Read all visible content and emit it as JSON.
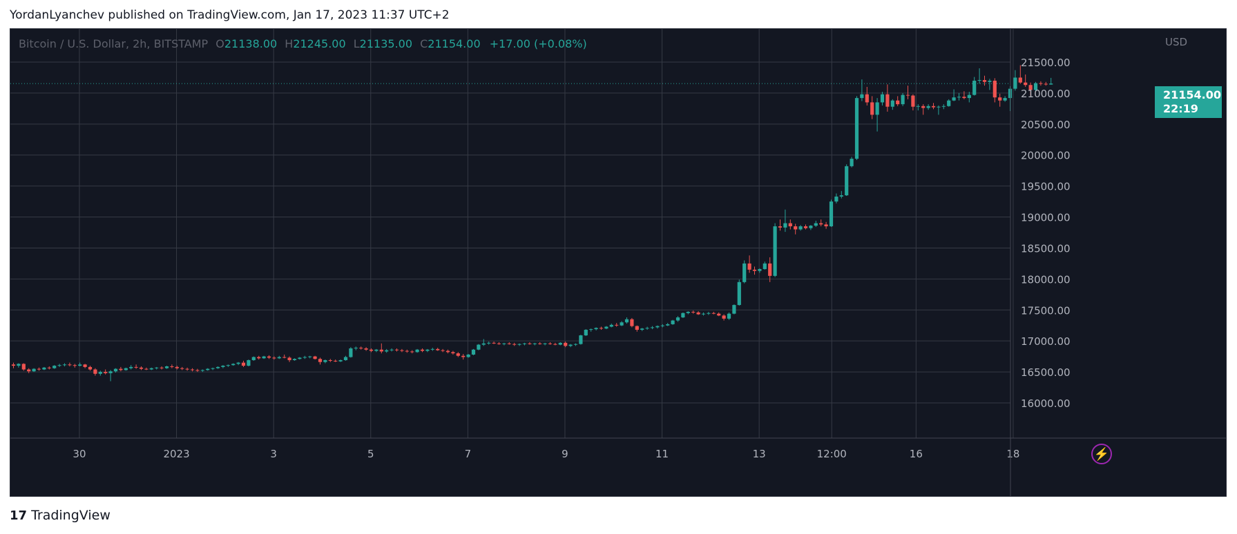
{
  "header": {
    "publisher_line": "YordanLyanchev published on TradingView.com, Jan 17, 2023 11:37 UTC+2"
  },
  "legend": {
    "symbol": "Bitcoin / U.S. Dollar, 2h, BITSTAMP",
    "open_key": "O",
    "open": "21138.00",
    "high_key": "H",
    "high": "21245.00",
    "low_key": "L",
    "low": "21135.00",
    "close_key": "C",
    "close": "21154.00",
    "change": "+17.00 (+0.08%)"
  },
  "price_axis": {
    "currency": "USD"
  },
  "last_price": {
    "value": "21154.00",
    "countdown": "22:19"
  },
  "footer": {
    "logo_text": "TradingView"
  },
  "colors": {
    "background": "#131722",
    "grid": "#363a45",
    "up": "#26a69a",
    "down": "#ef5350",
    "text": "#b2b5be"
  },
  "icons": {
    "alert": "lightning-bolt-icon",
    "logo": "tradingview-logo-icon"
  },
  "chart_data": {
    "type": "candlestick",
    "title": "Bitcoin / U.S. Dollar, 2h, BITSTAMP",
    "ylabel": "USD",
    "ylim": [
      15500,
      22050
    ],
    "y_ticks": [
      16000,
      16500,
      17000,
      17500,
      18000,
      18500,
      19000,
      19500,
      20000,
      20500,
      21000,
      21500
    ],
    "x_ticks": [
      {
        "label": "30",
        "bar": 12.9
      },
      {
        "label": "2023",
        "bar": 31.9
      },
      {
        "label": "3",
        "bar": 50.9
      },
      {
        "label": "5",
        "bar": 69.9
      },
      {
        "label": "7",
        "bar": 88.9
      },
      {
        "label": "9",
        "bar": 107.9
      },
      {
        "label": "11",
        "bar": 126.9
      },
      {
        "label": "13",
        "bar": 145.9
      },
      {
        "label": "12:00",
        "bar": 160.1
      },
      {
        "label": "16",
        "bar": 176.6
      },
      {
        "label": "18",
        "bar": 195.6
      }
    ],
    "last_price": 21154,
    "ohlc": [
      [
        16620,
        16650,
        16560,
        16600
      ],
      [
        16600,
        16640,
        16570,
        16630
      ],
      [
        16630,
        16640,
        16520,
        16540
      ],
      [
        16540,
        16560,
        16480,
        16510
      ],
      [
        16510,
        16560,
        16500,
        16550
      ],
      [
        16550,
        16570,
        16520,
        16540
      ],
      [
        16540,
        16580,
        16530,
        16570
      ],
      [
        16570,
        16590,
        16540,
        16560
      ],
      [
        16560,
        16610,
        16550,
        16600
      ],
      [
        16600,
        16630,
        16580,
        16610
      ],
      [
        16610,
        16640,
        16590,
        16620
      ],
      [
        16620,
        16650,
        16590,
        16610
      ],
      [
        16610,
        16630,
        16570,
        16600
      ],
      [
        16600,
        16650,
        16590,
        16620
      ],
      [
        16620,
        16630,
        16560,
        16580
      ],
      [
        16580,
        16600,
        16520,
        16540
      ],
      [
        16540,
        16560,
        16440,
        16470
      ],
      [
        16470,
        16520,
        16440,
        16500
      ],
      [
        16500,
        16540,
        16460,
        16480
      ],
      [
        16480,
        16530,
        16350,
        16510
      ],
      [
        16510,
        16560,
        16490,
        16550
      ],
      [
        16550,
        16580,
        16510,
        16530
      ],
      [
        16530,
        16570,
        16520,
        16560
      ],
      [
        16560,
        16610,
        16540,
        16580
      ],
      [
        16580,
        16620,
        16550,
        16570
      ],
      [
        16570,
        16590,
        16530,
        16550
      ],
      [
        16550,
        16570,
        16530,
        16540
      ],
      [
        16540,
        16570,
        16530,
        16560
      ],
      [
        16560,
        16580,
        16540,
        16570
      ],
      [
        16570,
        16590,
        16540,
        16560
      ],
      [
        16560,
        16600,
        16550,
        16590
      ],
      [
        16590,
        16620,
        16560,
        16580
      ],
      [
        16580,
        16600,
        16540,
        16560
      ],
      [
        16560,
        16580,
        16530,
        16550
      ],
      [
        16550,
        16570,
        16520,
        16540
      ],
      [
        16540,
        16560,
        16510,
        16530
      ],
      [
        16530,
        16550,
        16500,
        16520
      ],
      [
        16520,
        16540,
        16500,
        16530
      ],
      [
        16530,
        16560,
        16520,
        16550
      ],
      [
        16550,
        16570,
        16530,
        16560
      ],
      [
        16560,
        16590,
        16550,
        16580
      ],
      [
        16580,
        16610,
        16560,
        16600
      ],
      [
        16600,
        16620,
        16580,
        16610
      ],
      [
        16610,
        16640,
        16600,
        16630
      ],
      [
        16630,
        16660,
        16610,
        16650
      ],
      [
        16650,
        16680,
        16580,
        16600
      ],
      [
        16600,
        16700,
        16590,
        16690
      ],
      [
        16690,
        16750,
        16680,
        16740
      ],
      [
        16740,
        16760,
        16700,
        16720
      ],
      [
        16720,
        16760,
        16710,
        16750
      ],
      [
        16750,
        16770,
        16710,
        16730
      ],
      [
        16730,
        16750,
        16700,
        16720
      ],
      [
        16720,
        16760,
        16710,
        16740
      ],
      [
        16740,
        16780,
        16720,
        16730
      ],
      [
        16730,
        16750,
        16660,
        16690
      ],
      [
        16690,
        16720,
        16680,
        16710
      ],
      [
        16710,
        16740,
        16700,
        16730
      ],
      [
        16730,
        16760,
        16710,
        16740
      ],
      [
        16740,
        16760,
        16720,
        16750
      ],
      [
        16750,
        16760,
        16700,
        16710
      ],
      [
        16710,
        16730,
        16620,
        16660
      ],
      [
        16660,
        16700,
        16640,
        16690
      ],
      [
        16690,
        16710,
        16660,
        16680
      ],
      [
        16680,
        16700,
        16660,
        16670
      ],
      [
        16670,
        16700,
        16660,
        16690
      ],
      [
        16690,
        16760,
        16680,
        16740
      ],
      [
        16740,
        16900,
        16730,
        16880
      ],
      [
        16880,
        16910,
        16850,
        16890
      ],
      [
        16890,
        16910,
        16860,
        16880
      ],
      [
        16880,
        16900,
        16840,
        16860
      ],
      [
        16860,
        16880,
        16820,
        16840
      ],
      [
        16840,
        16870,
        16820,
        16860
      ],
      [
        16860,
        16960,
        16800,
        16830
      ],
      [
        16830,
        16870,
        16810,
        16850
      ],
      [
        16850,
        16880,
        16830,
        16860
      ],
      [
        16860,
        16880,
        16830,
        16850
      ],
      [
        16850,
        16870,
        16820,
        16840
      ],
      [
        16840,
        16860,
        16810,
        16830
      ],
      [
        16830,
        16850,
        16800,
        16820
      ],
      [
        16820,
        16870,
        16810,
        16860
      ],
      [
        16860,
        16880,
        16820,
        16840
      ],
      [
        16840,
        16870,
        16820,
        16860
      ],
      [
        16860,
        16890,
        16840,
        16870
      ],
      [
        16870,
        16890,
        16840,
        16850
      ],
      [
        16850,
        16870,
        16820,
        16840
      ],
      [
        16840,
        16860,
        16800,
        16820
      ],
      [
        16820,
        16840,
        16780,
        16800
      ],
      [
        16800,
        16820,
        16740,
        16760
      ],
      [
        16760,
        16790,
        16700,
        16740
      ],
      [
        16740,
        16790,
        16730,
        16780
      ],
      [
        16780,
        16870,
        16770,
        16860
      ],
      [
        16860,
        16950,
        16850,
        16940
      ],
      [
        16940,
        17030,
        16920,
        16960
      ],
      [
        16960,
        16990,
        16940,
        16970
      ],
      [
        16970,
        16990,
        16950,
        16960
      ],
      [
        16960,
        16980,
        16940,
        16950
      ],
      [
        16950,
        16970,
        16930,
        16960
      ],
      [
        16960,
        16980,
        16940,
        16950
      ],
      [
        16950,
        16970,
        16920,
        16940
      ],
      [
        16940,
        16960,
        16920,
        16950
      ],
      [
        16950,
        16970,
        16930,
        16960
      ],
      [
        16960,
        16980,
        16940,
        16950
      ],
      [
        16950,
        16970,
        16930,
        16960
      ],
      [
        16960,
        16980,
        16940,
        16950
      ],
      [
        16950,
        16970,
        16930,
        16960
      ],
      [
        16960,
        16980,
        16940,
        16950
      ],
      [
        16950,
        16970,
        16930,
        16940
      ],
      [
        16940,
        16980,
        16930,
        16970
      ],
      [
        16970,
        16990,
        16900,
        16920
      ],
      [
        16920,
        16950,
        16900,
        16940
      ],
      [
        16940,
        16960,
        16920,
        16950
      ],
      [
        16950,
        17100,
        16940,
        17090
      ],
      [
        17090,
        17190,
        17080,
        17180
      ],
      [
        17180,
        17200,
        17150,
        17190
      ],
      [
        17190,
        17220,
        17170,
        17210
      ],
      [
        17210,
        17230,
        17180,
        17200
      ],
      [
        17200,
        17240,
        17190,
        17230
      ],
      [
        17230,
        17280,
        17220,
        17260
      ],
      [
        17260,
        17290,
        17230,
        17250
      ],
      [
        17250,
        17320,
        17240,
        17300
      ],
      [
        17300,
        17380,
        17280,
        17350
      ],
      [
        17350,
        17370,
        17220,
        17240
      ],
      [
        17240,
        17250,
        17150,
        17180
      ],
      [
        17180,
        17210,
        17160,
        17200
      ],
      [
        17200,
        17230,
        17180,
        17210
      ],
      [
        17210,
        17240,
        17190,
        17220
      ],
      [
        17220,
        17250,
        17200,
        17240
      ],
      [
        17240,
        17270,
        17220,
        17250
      ],
      [
        17250,
        17290,
        17240,
        17270
      ],
      [
        17270,
        17340,
        17260,
        17330
      ],
      [
        17330,
        17400,
        17310,
        17380
      ],
      [
        17380,
        17460,
        17370,
        17450
      ],
      [
        17450,
        17480,
        17430,
        17470
      ],
      [
        17470,
        17490,
        17440,
        17460
      ],
      [
        17460,
        17480,
        17420,
        17430
      ],
      [
        17430,
        17460,
        17410,
        17440
      ],
      [
        17440,
        17470,
        17420,
        17450
      ],
      [
        17450,
        17470,
        17430,
        17440
      ],
      [
        17440,
        17460,
        17400,
        17410
      ],
      [
        17410,
        17430,
        17330,
        17360
      ],
      [
        17360,
        17460,
        17340,
        17440
      ],
      [
        17440,
        17590,
        17430,
        17580
      ],
      [
        17580,
        17990,
        17570,
        17950
      ],
      [
        17950,
        18300,
        17930,
        18250
      ],
      [
        18250,
        18380,
        18100,
        18150
      ],
      [
        18150,
        18200,
        18070,
        18130
      ],
      [
        18130,
        18170,
        18100,
        18160
      ],
      [
        18160,
        18280,
        18150,
        18250
      ],
      [
        18250,
        18350,
        17950,
        18050
      ],
      [
        18050,
        18900,
        18030,
        18850
      ],
      [
        18850,
        18960,
        18780,
        18830
      ],
      [
        18830,
        19120,
        18760,
        18900
      ],
      [
        18900,
        18960,
        18800,
        18850
      ],
      [
        18850,
        18890,
        18720,
        18800
      ],
      [
        18800,
        18870,
        18780,
        18850
      ],
      [
        18850,
        18880,
        18800,
        18820
      ],
      [
        18820,
        18870,
        18790,
        18860
      ],
      [
        18860,
        18940,
        18840,
        18900
      ],
      [
        18900,
        18960,
        18850,
        18880
      ],
      [
        18880,
        18920,
        18810,
        18850
      ],
      [
        18850,
        19280,
        18840,
        19250
      ],
      [
        19250,
        19380,
        19220,
        19330
      ],
      [
        19330,
        19420,
        19300,
        19350
      ],
      [
        19350,
        19850,
        19340,
        19820
      ],
      [
        19820,
        19970,
        19800,
        19940
      ],
      [
        19940,
        20950,
        19920,
        20920
      ],
      [
        20920,
        21220,
        20870,
        20980
      ],
      [
        20980,
        21100,
        20800,
        20850
      ],
      [
        20850,
        20950,
        20580,
        20650
      ],
      [
        20650,
        20920,
        20380,
        20850
      ],
      [
        20850,
        21020,
        20800,
        20980
      ],
      [
        20980,
        21140,
        20700,
        20780
      ],
      [
        20780,
        20900,
        20730,
        20880
      ],
      [
        20880,
        20950,
        20790,
        20820
      ],
      [
        20820,
        21000,
        20790,
        20970
      ],
      [
        20970,
        21120,
        20900,
        20960
      ],
      [
        20960,
        20980,
        20720,
        20780
      ],
      [
        20780,
        20820,
        20720,
        20790
      ],
      [
        20790,
        20820,
        20650,
        20760
      ],
      [
        20760,
        20820,
        20730,
        20790
      ],
      [
        20790,
        20840,
        20740,
        20770
      ],
      [
        20770,
        20800,
        20650,
        20780
      ],
      [
        20780,
        20820,
        20740,
        20790
      ],
      [
        20790,
        20900,
        20780,
        20880
      ],
      [
        20880,
        21060,
        20870,
        20930
      ],
      [
        20930,
        21000,
        20880,
        20940
      ],
      [
        20940,
        21030,
        20900,
        20920
      ],
      [
        20920,
        21020,
        20850,
        20970
      ],
      [
        20970,
        21260,
        20960,
        21200
      ],
      [
        21200,
        21400,
        21150,
        21210
      ],
      [
        21210,
        21280,
        21120,
        21180
      ],
      [
        21180,
        21230,
        21050,
        21200
      ],
      [
        21200,
        21240,
        20850,
        20930
      ],
      [
        20930,
        20990,
        20780,
        20880
      ],
      [
        20880,
        20950,
        20860,
        20920
      ],
      [
        20920,
        21110,
        20710,
        21070
      ],
      [
        21070,
        21370,
        21040,
        21250
      ],
      [
        21250,
        21450,
        21150,
        21170
      ],
      [
        21170,
        21300,
        21100,
        21130
      ],
      [
        21130,
        21170,
        20960,
        21050
      ],
      [
        21050,
        21180,
        21030,
        21160
      ],
      [
        21160,
        21190,
        21120,
        21150
      ],
      [
        21150,
        21180,
        21120,
        21140
      ],
      [
        21138,
        21245,
        21135,
        21154
      ]
    ]
  }
}
